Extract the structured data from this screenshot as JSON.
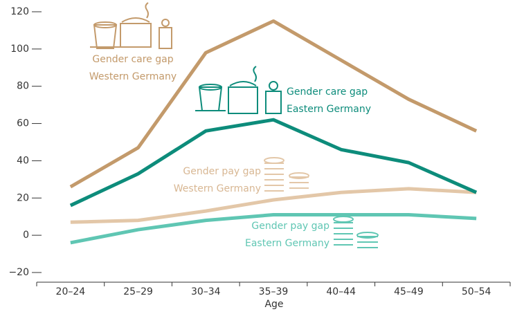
{
  "chart_data": {
    "type": "line",
    "x_label": "Age",
    "categories": [
      "20–24",
      "25–29",
      "30–34",
      "35–39",
      "40–44",
      "45–49",
      "50–54"
    ],
    "series": [
      {
        "color": "#c39a6b",
        "values": [
          26,
          47,
          98,
          115,
          94,
          73,
          56
        ]
      },
      {
        "color": "#0d8c7b",
        "values": [
          16,
          33,
          56,
          62,
          46,
          39,
          23
        ]
      },
      {
        "color": "#e3c7a8",
        "values": [
          7,
          8,
          13,
          19,
          23,
          25,
          23
        ]
      },
      {
        "color": "#5fc6b3",
        "values": [
          -4,
          3,
          8,
          11,
          11,
          11,
          9
        ]
      }
    ],
    "annotations": [
      {
        "lines": [
          "Gender care gap",
          "Western Germany"
        ],
        "color": "#c39a6b"
      },
      {
        "lines": [
          "Gender care gap",
          "Eastern Germany"
        ],
        "color": "#0d8c7b"
      },
      {
        "lines": [
          "Gender pay gap",
          "Western Germany"
        ],
        "color": "#d8b793"
      },
      {
        "lines": [
          "Gender pay gap",
          "Eastern Germany"
        ],
        "color": "#5fc6b3"
      }
    ],
    "ylim": [
      -20,
      120
    ],
    "yticks": [
      {
        "value": -20,
        "label": "−20"
      },
      0,
      20,
      40,
      60,
      80,
      100,
      120
    ]
  }
}
